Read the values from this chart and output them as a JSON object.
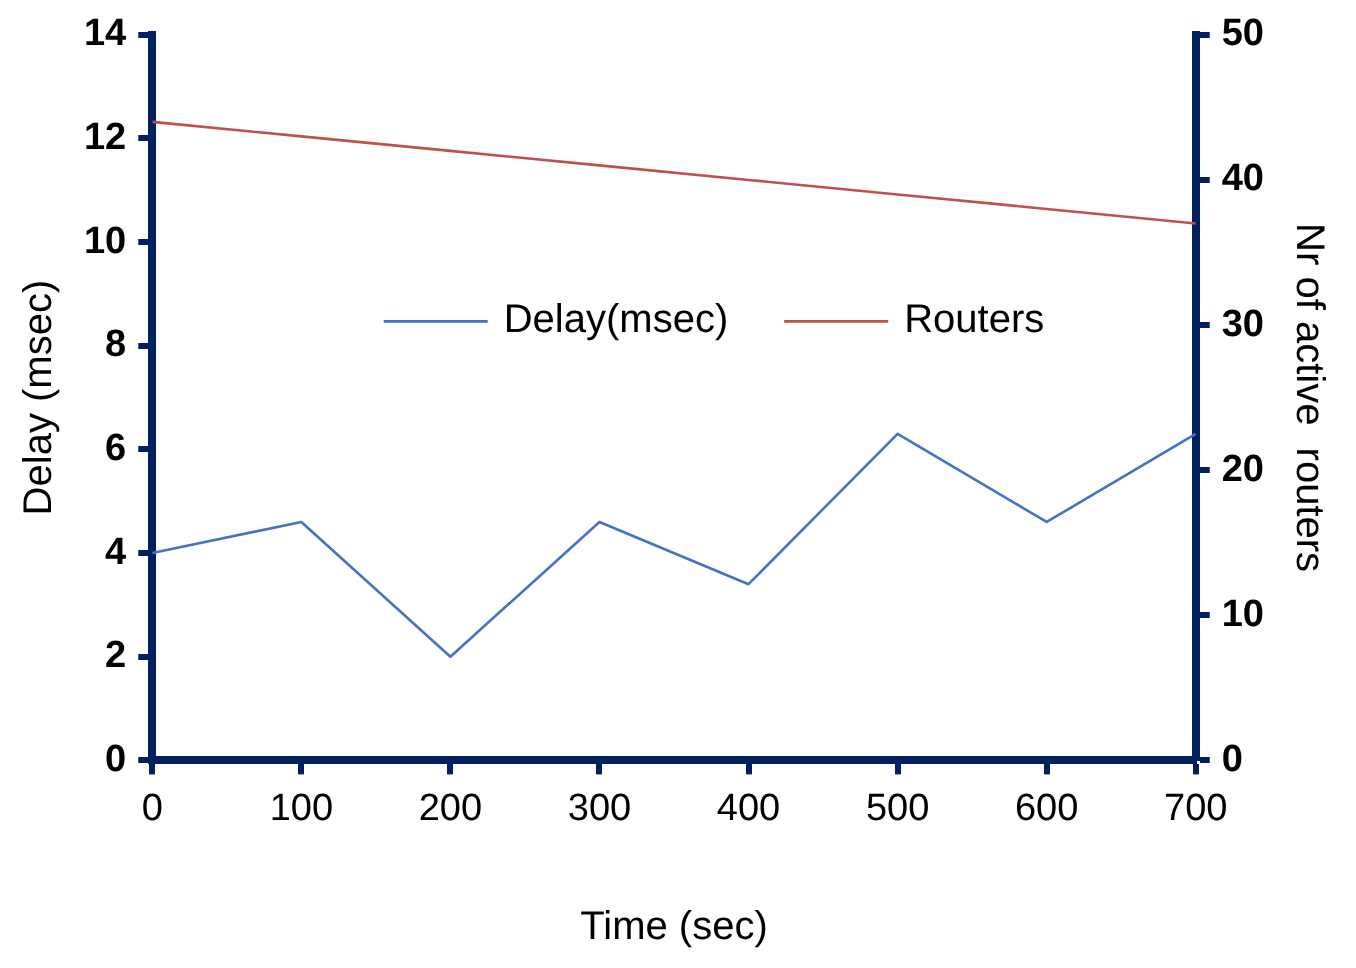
{
  "chart_data": {
    "type": "line",
    "xlabel": "Time (sec)",
    "ylabel": "Delay (msec)",
    "y2label": "Nr of active  routers",
    "x": [
      0,
      100,
      200,
      300,
      400,
      500,
      600,
      700
    ],
    "series": [
      {
        "name": "Delay(msec)",
        "color": "#4472c4",
        "values": [
          4,
          4.6,
          2,
          4.6,
          3.4,
          6.3,
          4.6,
          6.3
        ]
      },
      {
        "name": "Routers",
        "color": "#c0504d",
        "axis": "y2",
        "values": [
          44,
          43,
          42,
          41,
          40,
          39,
          38,
          37
        ]
      }
    ],
    "xlim": [
      0,
      700
    ],
    "xticks": [
      0,
      100,
      200,
      300,
      400,
      500,
      600,
      700
    ],
    "ylim": [
      0,
      14
    ],
    "yticks": [
      0,
      2,
      4,
      6,
      8,
      10,
      12,
      14
    ],
    "y2lim": [
      0,
      50
    ],
    "y2ticks": [
      0,
      10,
      20,
      30,
      40,
      50
    ],
    "grid": false,
    "legend": "center",
    "marker": "none",
    "line_style": "solid"
  }
}
